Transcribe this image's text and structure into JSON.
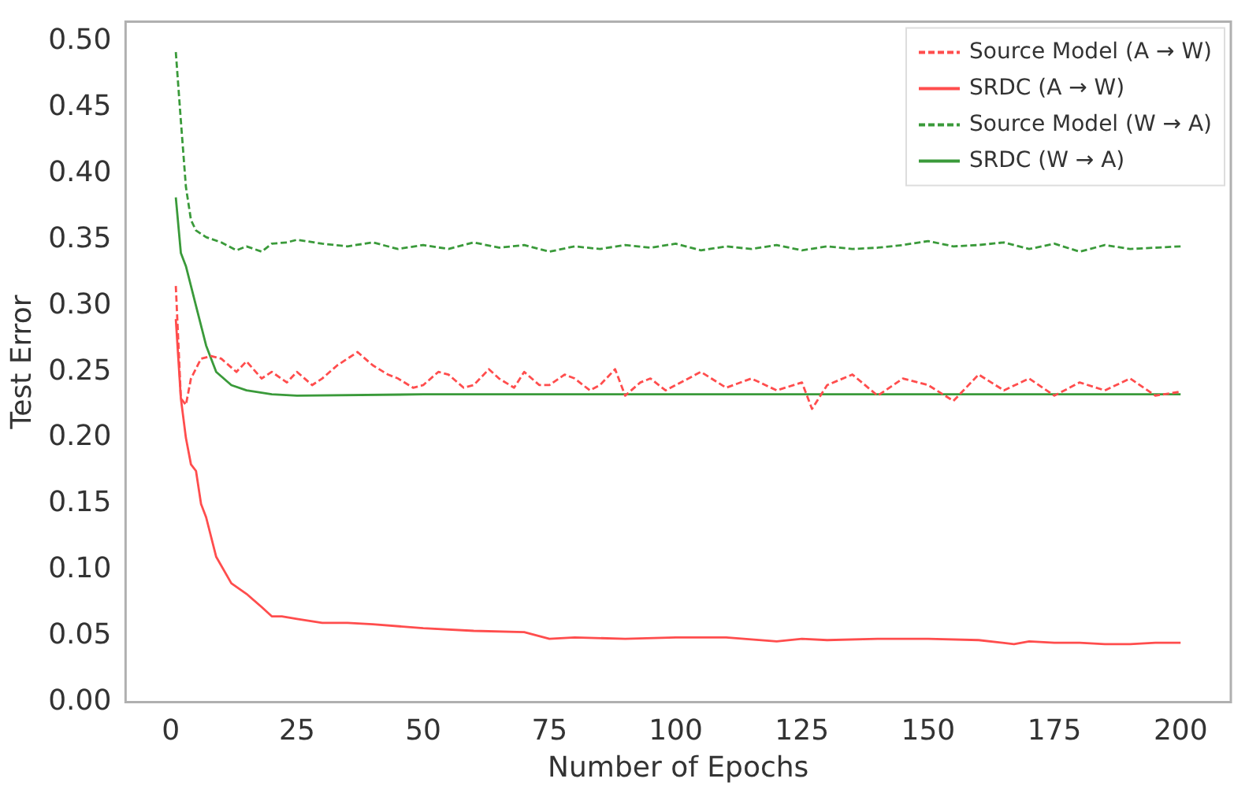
{
  "chart_data": {
    "type": "line",
    "xlabel": "Number of Epochs",
    "ylabel": "Test Error",
    "xlim": [
      -8.95,
      209.95
    ],
    "ylim": [
      0,
      0.515
    ],
    "xticks": [
      0,
      25,
      50,
      75,
      100,
      125,
      150,
      175,
      200
    ],
    "yticks": [
      {
        "value": 0,
        "label": "0.00"
      },
      {
        "value": 0.05,
        "label": "0.05"
      },
      {
        "value": 0.1,
        "label": "0.10"
      },
      {
        "value": 0.15,
        "label": "0.15"
      },
      {
        "value": 0.2,
        "label": "0.20"
      },
      {
        "value": 0.25,
        "label": "0.25"
      },
      {
        "value": 0.3,
        "label": "0.30"
      },
      {
        "value": 0.35,
        "label": "0.35"
      },
      {
        "value": 0.4,
        "label": "0.40"
      },
      {
        "value": 0.45,
        "label": "0.45"
      },
      {
        "value": 0.5,
        "label": "0.50"
      }
    ],
    "grid": false,
    "legend": "top right",
    "marker": "none",
    "series": [
      {
        "name": "Source Model (A → W)",
        "color": "#ff4d4d",
        "line_style": "dashed",
        "x": [
          1,
          2,
          3,
          4,
          6,
          8,
          10,
          13,
          15,
          18,
          20,
          23,
          25,
          28,
          30,
          33,
          35,
          37,
          40,
          43,
          45,
          48,
          50,
          53,
          55,
          58,
          60,
          63,
          65,
          68,
          70,
          73,
          75,
          78,
          80,
          83,
          85,
          88,
          90,
          93,
          95,
          98,
          100,
          105,
          110,
          115,
          120,
          125,
          127,
          130,
          135,
          140,
          145,
          150,
          155,
          160,
          165,
          170,
          175,
          180,
          185,
          190,
          195,
          200
        ],
        "values": [
          0.315,
          0.23,
          0.225,
          0.245,
          0.26,
          0.262,
          0.26,
          0.25,
          0.258,
          0.245,
          0.25,
          0.242,
          0.25,
          0.24,
          0.245,
          0.255,
          0.26,
          0.265,
          0.255,
          0.248,
          0.245,
          0.238,
          0.24,
          0.25,
          0.248,
          0.238,
          0.24,
          0.252,
          0.245,
          0.238,
          0.25,
          0.24,
          0.24,
          0.248,
          0.245,
          0.236,
          0.24,
          0.252,
          0.232,
          0.242,
          0.245,
          0.236,
          0.24,
          0.25,
          0.238,
          0.245,
          0.236,
          0.242,
          0.222,
          0.24,
          0.248,
          0.232,
          0.245,
          0.24,
          0.228,
          0.248,
          0.236,
          0.245,
          0.232,
          0.242,
          0.236,
          0.245,
          0.232,
          0.235
        ]
      },
      {
        "name": "SRDC (A → W)",
        "color": "#ff4d4d",
        "line_style": "solid",
        "x": [
          1,
          2,
          3,
          4,
          5,
          6,
          7,
          9,
          12,
          15,
          18,
          20,
          22,
          25,
          30,
          35,
          40,
          50,
          60,
          70,
          75,
          80,
          90,
          100,
          110,
          120,
          125,
          130,
          140,
          150,
          160,
          167,
          170,
          175,
          180,
          185,
          190,
          195,
          200
        ],
        "values": [
          0.29,
          0.23,
          0.2,
          0.18,
          0.175,
          0.15,
          0.14,
          0.11,
          0.09,
          0.082,
          0.072,
          0.065,
          0.065,
          0.063,
          0.06,
          0.06,
          0.059,
          0.056,
          0.054,
          0.053,
          0.048,
          0.049,
          0.048,
          0.049,
          0.049,
          0.046,
          0.048,
          0.047,
          0.048,
          0.048,
          0.047,
          0.044,
          0.046,
          0.045,
          0.045,
          0.044,
          0.044,
          0.045,
          0.045
        ]
      },
      {
        "name": "Source Model (W → A)",
        "color": "#3a9a3a",
        "line_style": "dashed",
        "x": [
          1,
          2,
          3,
          4,
          5,
          7,
          10,
          13,
          15,
          18,
          20,
          23,
          25,
          30,
          35,
          40,
          45,
          50,
          55,
          60,
          65,
          70,
          75,
          80,
          85,
          90,
          95,
          100,
          105,
          110,
          115,
          120,
          125,
          130,
          135,
          140,
          145,
          150,
          155,
          160,
          165,
          170,
          175,
          180,
          185,
          190,
          195,
          200
        ],
        "values": [
          0.492,
          0.44,
          0.39,
          0.365,
          0.357,
          0.352,
          0.348,
          0.342,
          0.345,
          0.341,
          0.347,
          0.348,
          0.35,
          0.347,
          0.345,
          0.348,
          0.343,
          0.346,
          0.343,
          0.348,
          0.344,
          0.346,
          0.341,
          0.345,
          0.343,
          0.346,
          0.344,
          0.347,
          0.342,
          0.345,
          0.343,
          0.346,
          0.342,
          0.345,
          0.343,
          0.344,
          0.346,
          0.349,
          0.345,
          0.346,
          0.348,
          0.343,
          0.347,
          0.341,
          0.346,
          0.343,
          0.344,
          0.345
        ]
      },
      {
        "name": "SRDC (W → A)",
        "color": "#3a9a3a",
        "line_style": "solid",
        "x": [
          1,
          2,
          3,
          5,
          7,
          9,
          12,
          15,
          20,
          25,
          50,
          100,
          150,
          200
        ],
        "values": [
          0.382,
          0.34,
          0.33,
          0.3,
          0.27,
          0.25,
          0.24,
          0.236,
          0.233,
          0.232,
          0.233,
          0.233,
          0.233,
          0.233
        ]
      }
    ]
  }
}
